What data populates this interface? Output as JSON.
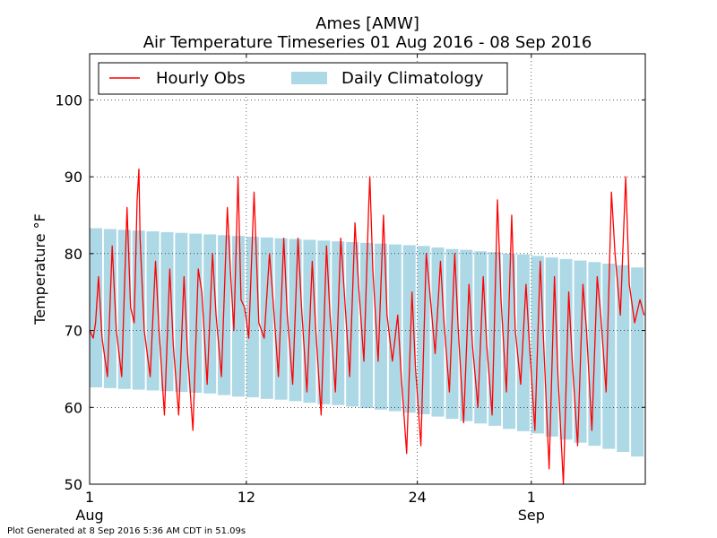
{
  "chart_data": {
    "type": "line",
    "title": "Ames [AMW]",
    "subtitle": "Air Temperature Timeseries 01 Aug 2016 - 08 Sep 2016",
    "xlabel": "",
    "ylabel": "Temperature °F",
    "ylim": [
      50,
      106
    ],
    "xlim": [
      "2016-08-01",
      "2016-09-09"
    ],
    "grid": true,
    "legend_position": "top",
    "x_ticks": [
      {
        "date": "2016-08-01",
        "label": "1",
        "sublabel": "Aug"
      },
      {
        "date": "2016-08-12",
        "label": "12",
        "sublabel": ""
      },
      {
        "date": "2016-08-24",
        "label": "24",
        "sublabel": ""
      },
      {
        "date": "2016-09-01",
        "label": "1",
        "sublabel": "Sep"
      }
    ],
    "y_ticks": [
      50,
      60,
      70,
      80,
      90,
      100
    ],
    "legend": [
      {
        "name": "Hourly Obs",
        "color": "#ff0000",
        "kind": "line"
      },
      {
        "name": "Daily Climatology",
        "color": "#add8e6",
        "kind": "patch"
      }
    ],
    "series": [
      {
        "name": "Hourly Obs",
        "color": "#ff0000",
        "points": [
          [
            "2016-08-01 00:00",
            70
          ],
          [
            "2016-08-01 06:00",
            69
          ],
          [
            "2016-08-01 10:00",
            71
          ],
          [
            "2016-08-01 15:00",
            77
          ],
          [
            "2016-08-01 21:00",
            69
          ],
          [
            "2016-08-02 06:00",
            64
          ],
          [
            "2016-08-02 14:00",
            81
          ],
          [
            "2016-08-02 21:00",
            70
          ],
          [
            "2016-08-03 06:00",
            64
          ],
          [
            "2016-08-03 15:00",
            86
          ],
          [
            "2016-08-03 21:00",
            73
          ],
          [
            "2016-08-04 03:00",
            71
          ],
          [
            "2016-08-04 08:00",
            87
          ],
          [
            "2016-08-04 11:00",
            91
          ],
          [
            "2016-08-04 13:00",
            82
          ],
          [
            "2016-08-04 20:00",
            70
          ],
          [
            "2016-08-05 06:00",
            64
          ],
          [
            "2016-08-05 15:00",
            79
          ],
          [
            "2016-08-05 21:00",
            70
          ],
          [
            "2016-08-06 06:00",
            59
          ],
          [
            "2016-08-06 15:00",
            78
          ],
          [
            "2016-08-06 21:00",
            68
          ],
          [
            "2016-08-07 06:00",
            59
          ],
          [
            "2016-08-07 15:00",
            77
          ],
          [
            "2016-08-07 21:00",
            67
          ],
          [
            "2016-08-08 06:00",
            57
          ],
          [
            "2016-08-08 15:00",
            78
          ],
          [
            "2016-08-08 21:00",
            75
          ],
          [
            "2016-08-09 06:00",
            63
          ],
          [
            "2016-08-09 15:00",
            80
          ],
          [
            "2016-08-09 21:00",
            72
          ],
          [
            "2016-08-10 06:00",
            64
          ],
          [
            "2016-08-10 16:00",
            86
          ],
          [
            "2016-08-10 21:00",
            78
          ],
          [
            "2016-08-11 03:00",
            70
          ],
          [
            "2016-08-11 10:00",
            90
          ],
          [
            "2016-08-11 15:00",
            74
          ],
          [
            "2016-08-11 21:00",
            73
          ],
          [
            "2016-08-12 04:00",
            69
          ],
          [
            "2016-08-12 13:00",
            88
          ],
          [
            "2016-08-12 21:00",
            71
          ],
          [
            "2016-08-13 06:00",
            69
          ],
          [
            "2016-08-13 15:00",
            80
          ],
          [
            "2016-08-13 21:00",
            74
          ],
          [
            "2016-08-14 06:00",
            64
          ],
          [
            "2016-08-14 15:00",
            82
          ],
          [
            "2016-08-14 21:00",
            72
          ],
          [
            "2016-08-15 06:00",
            63
          ],
          [
            "2016-08-15 15:00",
            82
          ],
          [
            "2016-08-15 21:00",
            73
          ],
          [
            "2016-08-16 06:00",
            62
          ],
          [
            "2016-08-16 15:00",
            79
          ],
          [
            "2016-08-16 21:00",
            70
          ],
          [
            "2016-08-17 06:00",
            59
          ],
          [
            "2016-08-17 15:00",
            81
          ],
          [
            "2016-08-17 21:00",
            72
          ],
          [
            "2016-08-18 06:00",
            62
          ],
          [
            "2016-08-18 15:00",
            82
          ],
          [
            "2016-08-18 21:00",
            75
          ],
          [
            "2016-08-19 06:00",
            64
          ],
          [
            "2016-08-19 15:00",
            84
          ],
          [
            "2016-08-19 21:00",
            76
          ],
          [
            "2016-08-20 06:00",
            66
          ],
          [
            "2016-08-20 14:00",
            86
          ],
          [
            "2016-08-20 16:00",
            90
          ],
          [
            "2016-08-20 21:00",
            78
          ],
          [
            "2016-08-21 06:00",
            66
          ],
          [
            "2016-08-21 15:00",
            85
          ],
          [
            "2016-08-21 21:00",
            72
          ],
          [
            "2016-08-22 06:00",
            66
          ],
          [
            "2016-08-22 15:00",
            72
          ],
          [
            "2016-08-22 21:00",
            64
          ],
          [
            "2016-08-23 06:00",
            54
          ],
          [
            "2016-08-23 15:00",
            75
          ],
          [
            "2016-08-23 21:00",
            65
          ],
          [
            "2016-08-24 06:00",
            55
          ],
          [
            "2016-08-24 15:00",
            80
          ],
          [
            "2016-08-24 21:00",
            75
          ],
          [
            "2016-08-25 06:00",
            67
          ],
          [
            "2016-08-25 15:00",
            79
          ],
          [
            "2016-08-25 21:00",
            71
          ],
          [
            "2016-08-26 06:00",
            62
          ],
          [
            "2016-08-26 15:00",
            80
          ],
          [
            "2016-08-26 21:00",
            70
          ],
          [
            "2016-08-27 06:00",
            58
          ],
          [
            "2016-08-27 15:00",
            76
          ],
          [
            "2016-08-27 21:00",
            68
          ],
          [
            "2016-08-28 06:00",
            60
          ],
          [
            "2016-08-28 15:00",
            77
          ],
          [
            "2016-08-28 21:00",
            68
          ],
          [
            "2016-08-29 06:00",
            59
          ],
          [
            "2016-08-29 15:00",
            87
          ],
          [
            "2016-08-29 21:00",
            74
          ],
          [
            "2016-08-30 06:00",
            62
          ],
          [
            "2016-08-30 15:00",
            85
          ],
          [
            "2016-08-30 21:00",
            70
          ],
          [
            "2016-08-31 06:00",
            63
          ],
          [
            "2016-08-31 15:00",
            76
          ],
          [
            "2016-08-31 21:00",
            68
          ],
          [
            "2016-09-01 06:00",
            57
          ],
          [
            "2016-09-01 15:00",
            79
          ],
          [
            "2016-09-01 21:00",
            68
          ],
          [
            "2016-09-02 06:00",
            52
          ],
          [
            "2016-09-02 15:00",
            77
          ],
          [
            "2016-09-02 21:00",
            64
          ],
          [
            "2016-09-03 06:00",
            50
          ],
          [
            "2016-09-03 15:00",
            75
          ],
          [
            "2016-09-03 21:00",
            66
          ],
          [
            "2016-09-04 06:00",
            55
          ],
          [
            "2016-09-04 15:00",
            76
          ],
          [
            "2016-09-04 21:00",
            70
          ],
          [
            "2016-09-05 06:00",
            57
          ],
          [
            "2016-09-05 15:00",
            77
          ],
          [
            "2016-09-05 21:00",
            72
          ],
          [
            "2016-09-06 06:00",
            62
          ],
          [
            "2016-09-06 15:00",
            88
          ],
          [
            "2016-09-06 21:00",
            80
          ],
          [
            "2016-09-07 06:00",
            72
          ],
          [
            "2016-09-07 15:00",
            90
          ],
          [
            "2016-09-07 21:00",
            76
          ],
          [
            "2016-09-08 06:00",
            71
          ],
          [
            "2016-09-08 15:00",
            74
          ],
          [
            "2016-09-08 22:00",
            72
          ]
        ]
      },
      {
        "name": "Daily Climatology",
        "color": "#add8e6",
        "days": [
          "2016-08-01",
          "2016-08-02",
          "2016-08-03",
          "2016-08-04",
          "2016-08-05",
          "2016-08-06",
          "2016-08-07",
          "2016-08-08",
          "2016-08-09",
          "2016-08-10",
          "2016-08-11",
          "2016-08-12",
          "2016-08-13",
          "2016-08-14",
          "2016-08-15",
          "2016-08-16",
          "2016-08-17",
          "2016-08-18",
          "2016-08-19",
          "2016-08-20",
          "2016-08-21",
          "2016-08-22",
          "2016-08-23",
          "2016-08-24",
          "2016-08-25",
          "2016-08-26",
          "2016-08-27",
          "2016-08-28",
          "2016-08-29",
          "2016-08-30",
          "2016-08-31",
          "2016-09-01",
          "2016-09-02",
          "2016-09-03",
          "2016-09-04",
          "2016-09-05",
          "2016-09-06",
          "2016-09-07",
          "2016-09-08"
        ],
        "high": [
          83.3,
          83.2,
          83.1,
          83.0,
          82.9,
          82.8,
          82.7,
          82.6,
          82.5,
          82.4,
          82.3,
          82.2,
          82.1,
          82.0,
          81.9,
          81.8,
          81.7,
          81.6,
          81.5,
          81.4,
          81.3,
          81.2,
          81.1,
          81.0,
          80.8,
          80.6,
          80.5,
          80.3,
          80.2,
          80.0,
          79.9,
          79.7,
          79.5,
          79.3,
          79.1,
          78.9,
          78.7,
          78.5,
          78.2
        ],
        "low": [
          62.6,
          62.5,
          62.4,
          62.3,
          62.2,
          62.1,
          62.0,
          61.9,
          61.8,
          61.6,
          61.4,
          61.3,
          61.1,
          61.0,
          60.8,
          60.6,
          60.4,
          60.3,
          60.1,
          59.9,
          59.7,
          59.5,
          59.3,
          59.1,
          58.8,
          58.5,
          58.2,
          57.9,
          57.6,
          57.2,
          56.9,
          56.6,
          56.2,
          55.8,
          55.4,
          55.0,
          54.6,
          54.2,
          53.6
        ]
      }
    ]
  },
  "footer": {
    "text": "Plot Generated at 8 Sep 2016 5:36 AM CDT in 51.09s"
  }
}
